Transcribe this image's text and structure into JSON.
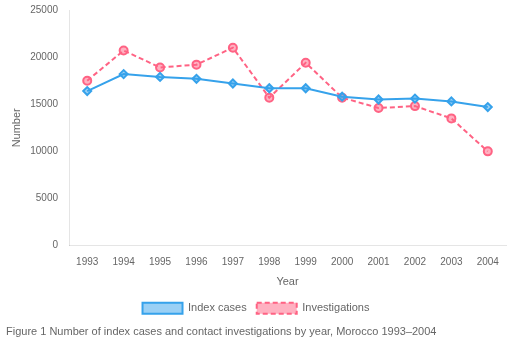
{
  "chart_data": {
    "type": "line",
    "caption": "Figure 1 Number of index cases and contact investigations by year, Morocco 1993–2004",
    "xlabel": "Year",
    "ylabel": "Number",
    "x": [
      1993,
      1994,
      1995,
      1996,
      1997,
      1998,
      1999,
      2000,
      2001,
      2002,
      2003,
      2004
    ],
    "series": [
      {
        "name": "Index cases",
        "values": [
          16400,
          18200,
          17900,
          17700,
          17200,
          16700,
          16700,
          15800,
          15500,
          15600,
          15300,
          14700
        ],
        "marker": "diamond",
        "line_style": "solid"
      },
      {
        "name": "Investigations",
        "values": [
          17500,
          20700,
          18900,
          19200,
          21000,
          15700,
          19400,
          15700,
          14600,
          14800,
          13500,
          10000
        ],
        "marker": "circle",
        "line_style": "dashed"
      }
    ],
    "xlim": [
      1992.5,
      2004.5
    ],
    "xticks": [
      1993,
      1994,
      1995,
      1996,
      1997,
      1998,
      1999,
      2000,
      2001,
      2002,
      2003,
      2004
    ],
    "ylim": [
      0,
      25000
    ],
    "yticks": [
      0,
      5000,
      10000,
      15000,
      20000,
      25000
    ],
    "grid": false,
    "legend": "bottom"
  }
}
